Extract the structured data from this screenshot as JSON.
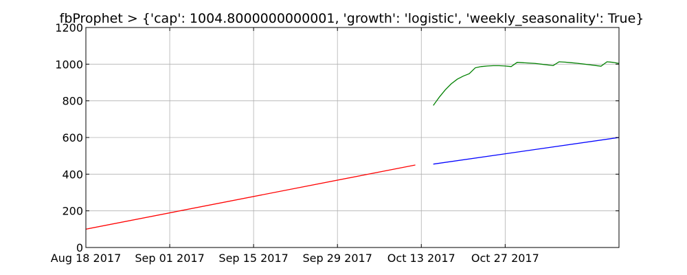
{
  "chart_data": {
    "type": "line",
    "title": "fbProphet > {'cap': 1004.8000000000001, 'growth': 'logistic', 'weekly_seasonality': True}",
    "xlabel": "",
    "ylabel": "",
    "x_axis": "date",
    "xlim": [
      "2017-08-18",
      "2017-11-15"
    ],
    "ylim": [
      0,
      1200
    ],
    "x_ticks": [
      "2017-08-18",
      "2017-09-01",
      "2017-09-15",
      "2017-09-29",
      "2017-10-13",
      "2017-10-27"
    ],
    "x_tick_labels": [
      "Aug 18 2017",
      "Sep 01 2017",
      "Sep 15 2017",
      "Sep 29 2017",
      "Oct 13 2017",
      "Oct 27 2017"
    ],
    "y_ticks": [
      0,
      200,
      400,
      600,
      800,
      1000,
      1200
    ],
    "y_tick_labels": [
      "0",
      "200",
      "400",
      "600",
      "800",
      "1000",
      "1200"
    ],
    "grid": true,
    "legend": "none",
    "series": [
      {
        "color": "#ff0000",
        "points": [
          [
            "2017-08-18",
            100
          ],
          [
            "2017-10-12",
            450
          ]
        ]
      },
      {
        "color": "#0000ff",
        "points": [
          [
            "2017-10-15",
            455
          ],
          [
            "2017-11-15",
            600
          ]
        ]
      },
      {
        "color": "#008000",
        "points": [
          [
            "2017-10-15",
            775
          ],
          [
            "2017-10-16",
            820
          ],
          [
            "2017-10-17",
            860
          ],
          [
            "2017-10-18",
            893
          ],
          [
            "2017-10-19",
            918
          ],
          [
            "2017-10-20",
            935
          ],
          [
            "2017-10-21",
            948
          ],
          [
            "2017-10-22",
            980
          ],
          [
            "2017-10-23",
            987
          ],
          [
            "2017-10-24",
            990
          ],
          [
            "2017-10-25",
            992
          ],
          [
            "2017-10-26",
            992
          ],
          [
            "2017-10-27",
            990
          ],
          [
            "2017-10-28",
            987
          ],
          [
            "2017-10-29",
            1010
          ],
          [
            "2017-10-30",
            1008
          ],
          [
            "2017-10-31",
            1006
          ],
          [
            "2017-11-01",
            1004
          ],
          [
            "2017-11-02",
            1000
          ],
          [
            "2017-11-03",
            996
          ],
          [
            "2017-11-04",
            992
          ],
          [
            "2017-11-05",
            1013
          ],
          [
            "2017-11-06",
            1011
          ],
          [
            "2017-11-07",
            1008
          ],
          [
            "2017-11-08",
            1005
          ],
          [
            "2017-11-09",
            1001
          ],
          [
            "2017-11-10",
            997
          ],
          [
            "2017-11-11",
            993
          ],
          [
            "2017-11-12",
            989
          ],
          [
            "2017-11-13",
            1013
          ],
          [
            "2017-11-14",
            1010
          ],
          [
            "2017-11-15",
            1004
          ]
        ]
      }
    ]
  }
}
